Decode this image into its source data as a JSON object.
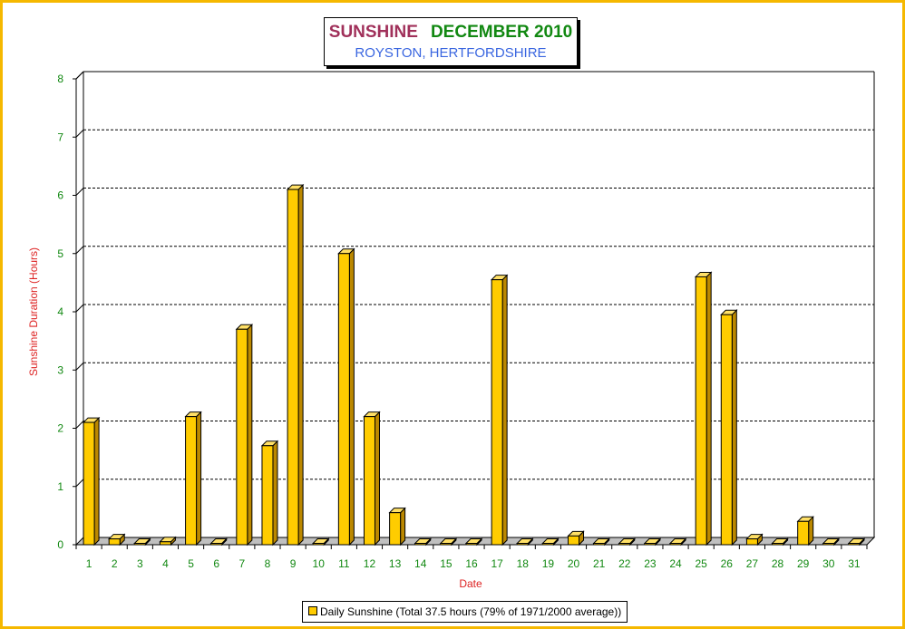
{
  "chart_data": {
    "type": "bar",
    "title": "SUNSHINE",
    "title_period": "DECEMBER 2010",
    "subtitle": "ROYSTON, HERTFORDSHIRE",
    "xlabel": "Date",
    "ylabel": "Sunshine Duration (Hours)",
    "ylim": [
      0,
      8
    ],
    "yticks": [
      "0",
      "1",
      "2",
      "3",
      "4",
      "5",
      "6",
      "7",
      "8"
    ],
    "grid": true,
    "legend_position": "bottom",
    "categories": [
      "1",
      "2",
      "3",
      "4",
      "5",
      "6",
      "7",
      "8",
      "9",
      "10",
      "11",
      "12",
      "13",
      "14",
      "15",
      "16",
      "17",
      "18",
      "19",
      "20",
      "21",
      "22",
      "23",
      "24",
      "25",
      "26",
      "27",
      "28",
      "29",
      "30",
      "31"
    ],
    "series": [
      {
        "name": "Daily Sunshine (Total 37.5 hours (79% of 1971/2000 average))",
        "values": [
          2.1,
          0.1,
          0.02,
          0.05,
          2.2,
          0.0,
          3.7,
          1.7,
          6.1,
          0.02,
          5.0,
          2.2,
          0.55,
          0.02,
          0.0,
          0.0,
          4.55,
          0.02,
          0.0,
          0.15,
          0.0,
          0.0,
          0.0,
          0.0,
          4.6,
          3.95,
          0.1,
          0.0,
          0.4,
          0.0,
          0.0
        ]
      }
    ]
  },
  "colors": {
    "bar_front": "#ffcc00",
    "bar_side": "#bb8800",
    "bar_top": "#ffe066",
    "axis_text": "#118811",
    "axis_title": "#dd2222",
    "frame": "#f5b800",
    "title_sunshine": "#a0305a",
    "title_period": "#118811",
    "subtitle": "#3a66e0"
  }
}
